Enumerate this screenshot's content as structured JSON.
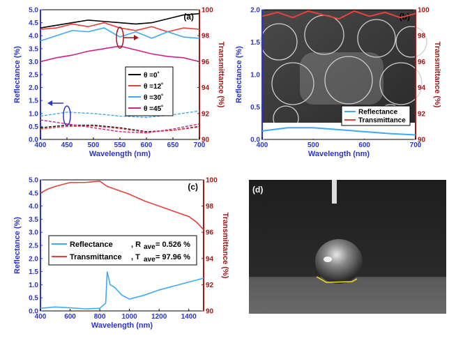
{
  "chart_data": [
    {
      "panel": "(a)",
      "type": "line",
      "xlabel": "Wavelength (nm)",
      "ylabel_left": "Reflectance (%)",
      "ylabel_right": "Transmittance (%)",
      "xlim": [
        400,
        700
      ],
      "ylim_left": [
        0,
        5
      ],
      "ylim_right": [
        90,
        100
      ],
      "xticks": [
        "400",
        "450",
        "500",
        "550",
        "600",
        "650",
        "700"
      ],
      "yticks_left": [
        "0.0",
        "0.5",
        "1.0",
        "1.5",
        "2.0",
        "2.5",
        "3.0",
        "3.5",
        "4.0",
        "4.5",
        "5.0"
      ],
      "yticks_right": [
        "90",
        "92",
        "94",
        "96",
        "98",
        "100"
      ],
      "legend": [
        "θ =0˚",
        "θ =12˚",
        "θ =30˚",
        "θ =45˚"
      ],
      "colors": [
        "#000000",
        "#e8403c",
        "#3fa9f5",
        "#d0208a"
      ],
      "transmittance": [
        {
          "x": [
            400,
            430,
            460,
            490,
            520,
            550,
            580,
            610,
            640,
            670,
            700
          ],
          "y": [
            98.6,
            98.8,
            99.0,
            99.2,
            99.1,
            99.0,
            98.9,
            99.0,
            99.3,
            99.6,
            99.7
          ]
        },
        {
          "x": [
            400,
            430,
            460,
            490,
            520,
            550,
            580,
            610,
            640,
            670,
            700
          ],
          "y": [
            98.5,
            98.6,
            98.9,
            98.7,
            99.0,
            98.6,
            98.4,
            98.7,
            98.3,
            98.6,
            98.5
          ]
        },
        {
          "x": [
            400,
            430,
            460,
            490,
            520,
            550,
            580,
            610,
            640,
            670,
            700
          ],
          "y": [
            97.6,
            98.0,
            98.4,
            98.3,
            98.6,
            97.9,
            98.3,
            97.8,
            98.3,
            97.9,
            97.8
          ]
        },
        {
          "x": [
            400,
            430,
            460,
            490,
            520,
            550,
            580,
            610,
            640,
            670,
            700
          ],
          "y": [
            96.0,
            96.3,
            96.5,
            96.8,
            97.0,
            97.2,
            96.9,
            96.6,
            96.4,
            96.3,
            96.0
          ]
        }
      ],
      "reflectance": [
        {
          "x": [
            400,
            450,
            500,
            550,
            600,
            650,
            700
          ],
          "y": [
            0.45,
            0.55,
            0.55,
            0.45,
            0.3,
            0.35,
            0.5
          ]
        },
        {
          "x": [
            400,
            450,
            500,
            550,
            600,
            650,
            700
          ],
          "y": [
            0.4,
            0.5,
            0.52,
            0.42,
            0.28,
            0.35,
            0.48
          ]
        },
        {
          "x": [
            400,
            450,
            500,
            550,
            600,
            650,
            700
          ],
          "y": [
            0.9,
            1.05,
            1.0,
            0.9,
            0.85,
            0.95,
            1.1
          ]
        },
        {
          "x": [
            400,
            450,
            500,
            550,
            600,
            650,
            700
          ],
          "y": [
            0.75,
            0.6,
            0.45,
            0.3,
            0.25,
            0.4,
            0.6
          ]
        }
      ]
    },
    {
      "panel": "(b)",
      "type": "line",
      "xlabel": "Wavelength (nm)",
      "ylabel_left": "Reflectance (%)",
      "ylabel_right": "Transmittance (%)",
      "xlim": [
        400,
        700
      ],
      "ylim_left": [
        0,
        2
      ],
      "ylim_right": [
        90,
        100
      ],
      "xticks": [
        "400",
        "500",
        "600",
        "700"
      ],
      "yticks_left": [
        "0.0",
        "0.5",
        "1.0",
        "1.5",
        "2.0"
      ],
      "yticks_right": [
        "90",
        "92",
        "94",
        "96",
        "98",
        "100"
      ],
      "legend": [
        "Reflectance",
        "Transmittance"
      ],
      "colors": [
        "#3fa9f5",
        "#e8403c"
      ],
      "reflectance": {
        "x": [
          400,
          450,
          500,
          550,
          600,
          650,
          700
        ],
        "y": [
          0.13,
          0.18,
          0.18,
          0.15,
          0.12,
          0.09,
          0.07
        ]
      },
      "transmittance": {
        "x": [
          400,
          430,
          460,
          490,
          520,
          550,
          580,
          610,
          640,
          670,
          700
        ],
        "y": [
          99.5,
          99.8,
          99.4,
          99.9,
          99.6,
          99.3,
          99.9,
          99.5,
          99.8,
          99.4,
          99.7
        ]
      }
    },
    {
      "panel": "(c)",
      "type": "line",
      "xlabel": "Wavelength (nm)",
      "ylabel_left": "Reflectance (%)",
      "ylabel_right": "Transmittance (%)",
      "xlim": [
        400,
        1500
      ],
      "ylim_left": [
        0,
        5
      ],
      "ylim_right": [
        90,
        100
      ],
      "xticks": [
        "400",
        "600",
        "800",
        "1000",
        "1200",
        "1400"
      ],
      "yticks_left": [
        "0.0",
        "0.5",
        "1.0",
        "1.5",
        "2.0",
        "2.5",
        "3.0",
        "3.5",
        "4.0",
        "4.5",
        "5.0"
      ],
      "yticks_right": [
        "90",
        "92",
        "94",
        "96",
        "98",
        "100"
      ],
      "legend_reflectance": "Reflectance",
      "legend_ravg_label": ", R",
      "legend_ravg_sub": "ave",
      "legend_ravg_value": "= 0.526 %",
      "legend_transmittance": "Transmittance",
      "legend_tavg_label": ", T",
      "legend_tavg_sub": "ave",
      "legend_tavg_value": "= 97.96 %",
      "colors": [
        "#3fa9f5",
        "#e8403c"
      ],
      "reflectance": {
        "x": [
          400,
          500,
          600,
          700,
          800,
          840,
          850,
          870,
          900,
          950,
          1000,
          1100,
          1200,
          1300,
          1400,
          1500
        ],
        "y": [
          0.1,
          0.15,
          0.12,
          0.08,
          0.1,
          0.3,
          1.5,
          1.0,
          0.9,
          0.6,
          0.45,
          0.6,
          0.8,
          0.95,
          1.1,
          1.25
        ]
      },
      "transmittance": {
        "x": [
          400,
          450,
          500,
          600,
          700,
          800,
          850,
          900,
          1000,
          1100,
          1200,
          1300,
          1400,
          1450,
          1500
        ],
        "y": [
          99.0,
          99.3,
          99.5,
          99.8,
          99.8,
          99.9,
          99.5,
          99.3,
          98.9,
          98.4,
          98.0,
          97.6,
          97.2,
          96.8,
          96.2
        ]
      }
    }
  ],
  "panel_d_label": "(d)"
}
